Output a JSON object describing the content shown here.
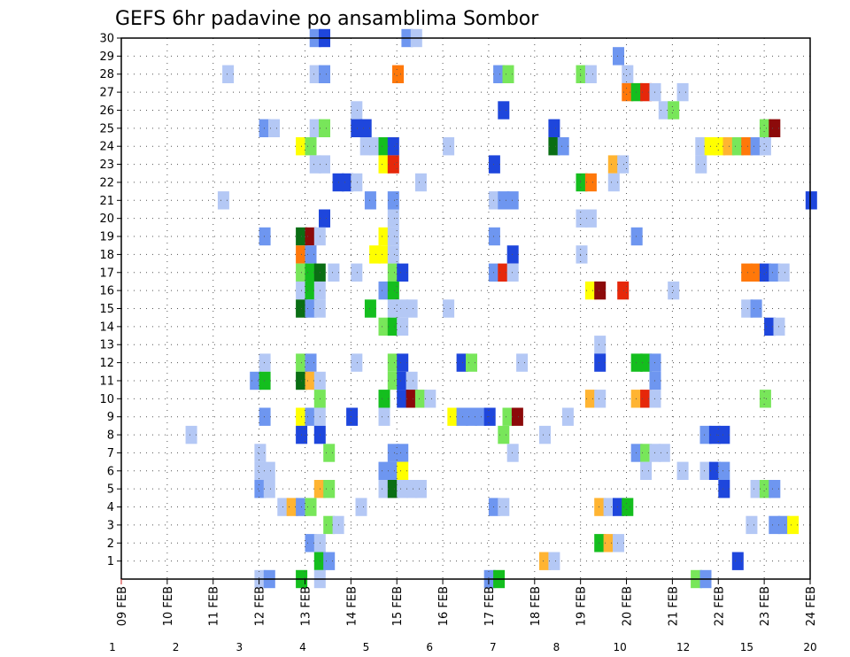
{
  "chart_data": {
    "type": "heatmap",
    "title": "GEFS 6hr padavine po ansamblima Sombor",
    "x_ticks": [
      "09 FEB",
      "10 FEB",
      "11 FEB",
      "12 FEB",
      "13 FEB",
      "14 FEB",
      "15 FEB",
      "16 FEB",
      "17 FEB",
      "18 FEB",
      "19 FEB",
      "20 FEB",
      "21 FEB",
      "22 FEB",
      "23 FEB",
      "24 FEB"
    ],
    "y_ticks": [
      "1",
      "2",
      "3",
      "4",
      "5",
      "6",
      "7",
      "8",
      "9",
      "10",
      "11",
      "12",
      "13",
      "14",
      "15",
      "16",
      "17",
      "18",
      "19",
      "20",
      "21",
      "22",
      "23",
      "24",
      "25",
      "26",
      "27",
      "28",
      "29",
      "30"
    ],
    "xlim": [
      0,
      15
    ],
    "ylim": [
      0,
      30
    ],
    "grid": true,
    "colorbar": {
      "labels": [
        "1",
        "2",
        "3",
        "4",
        "5",
        "6",
        "7",
        "8",
        "10",
        "12",
        "15",
        "20"
      ],
      "colors": [
        "#b4c8f5",
        "#6e96f0",
        "#1e46dc",
        "#78e65a",
        "#14be1e",
        "#0a6e14",
        "#ffff00",
        "#ffb432",
        "#ff780a",
        "#e6280a",
        "#8c0a0a"
      ]
    },
    "cells": [
      [
        13.1,
        30,
        2
      ],
      [
        13.3,
        30,
        3
      ],
      [
        15.1,
        30,
        2
      ],
      [
        15.3,
        30,
        1
      ],
      [
        19.7,
        29,
        2
      ],
      [
        11.2,
        28,
        1
      ],
      [
        13.1,
        28,
        1
      ],
      [
        13.3,
        28,
        2
      ],
      [
        14.9,
        28,
        9
      ],
      [
        17.1,
        28,
        2
      ],
      [
        17.3,
        28,
        4
      ],
      [
        18.9,
        28,
        4
      ],
      [
        19.1,
        28,
        1
      ],
      [
        19.9,
        28,
        1
      ],
      [
        19.9,
        27,
        9
      ],
      [
        20.1,
        27,
        5
      ],
      [
        20.3,
        27,
        10
      ],
      [
        20.5,
        27,
        1
      ],
      [
        21.1,
        27,
        1
      ],
      [
        14.0,
        26,
        1
      ],
      [
        17.2,
        26,
        3
      ],
      [
        20.7,
        26,
        1
      ],
      [
        20.9,
        26,
        4
      ],
      [
        12.0,
        25,
        2
      ],
      [
        12.2,
        25,
        1
      ],
      [
        13.1,
        25,
        1
      ],
      [
        13.3,
        25,
        4
      ],
      [
        14.0,
        25,
        3
      ],
      [
        14.2,
        25,
        3
      ],
      [
        18.3,
        25,
        3
      ],
      [
        22.9,
        25,
        4
      ],
      [
        23.1,
        25,
        11
      ],
      [
        12.8,
        24,
        7
      ],
      [
        13.0,
        24,
        4
      ],
      [
        14.2,
        24,
        1
      ],
      [
        14.4,
        24,
        1
      ],
      [
        14.6,
        24,
        5
      ],
      [
        14.8,
        24,
        3
      ],
      [
        16.0,
        24,
        1
      ],
      [
        18.3,
        24,
        6
      ],
      [
        18.5,
        24,
        2
      ],
      [
        21.5,
        24,
        1
      ],
      [
        21.7,
        24,
        7
      ],
      [
        21.9,
        24,
        7
      ],
      [
        22.1,
        24,
        8
      ],
      [
        22.3,
        24,
        4
      ],
      [
        22.5,
        24,
        9
      ],
      [
        22.7,
        24,
        2
      ],
      [
        22.9,
        24,
        1
      ],
      [
        13.1,
        23,
        1
      ],
      [
        13.3,
        23,
        1
      ],
      [
        14.6,
        23,
        7
      ],
      [
        14.8,
        23,
        10
      ],
      [
        17.0,
        23,
        3
      ],
      [
        19.6,
        23,
        8
      ],
      [
        19.8,
        23,
        1
      ],
      [
        21.5,
        23,
        1
      ],
      [
        13.6,
        22,
        3
      ],
      [
        13.8,
        22,
        3
      ],
      [
        14.0,
        22,
        1
      ],
      [
        15.4,
        22,
        1
      ],
      [
        18.9,
        22,
        5
      ],
      [
        19.1,
        22,
        9
      ],
      [
        19.6,
        22,
        1
      ],
      [
        11.1,
        21,
        1
      ],
      [
        14.3,
        21,
        2
      ],
      [
        14.8,
        21,
        2
      ],
      [
        17.0,
        21,
        1
      ],
      [
        17.2,
        21,
        2
      ],
      [
        17.4,
        21,
        2
      ],
      [
        23.9,
        21,
        3
      ],
      [
        13.3,
        20,
        3
      ],
      [
        14.8,
        20,
        1
      ],
      [
        18.9,
        20,
        1
      ],
      [
        19.1,
        20,
        1
      ],
      [
        12.0,
        19,
        2
      ],
      [
        12.8,
        19,
        6
      ],
      [
        13.0,
        19,
        11
      ],
      [
        13.2,
        19,
        1
      ],
      [
        14.6,
        19,
        7
      ],
      [
        14.8,
        19,
        1
      ],
      [
        17.0,
        19,
        2
      ],
      [
        20.1,
        19,
        2
      ],
      [
        12.8,
        18,
        9
      ],
      [
        13.0,
        18,
        2
      ],
      [
        14.4,
        18,
        7
      ],
      [
        14.6,
        18,
        7
      ],
      [
        14.8,
        18,
        1
      ],
      [
        17.4,
        18,
        3
      ],
      [
        18.9,
        18,
        1
      ],
      [
        12.8,
        17,
        4
      ],
      [
        13.0,
        17,
        5
      ],
      [
        13.2,
        17,
        6
      ],
      [
        13.5,
        17,
        1
      ],
      [
        14.0,
        17,
        1
      ],
      [
        14.8,
        17,
        4
      ],
      [
        15.0,
        17,
        3
      ],
      [
        17.0,
        17,
        2
      ],
      [
        17.2,
        17,
        10
      ],
      [
        17.4,
        17,
        1
      ],
      [
        22.5,
        17,
        9
      ],
      [
        22.7,
        17,
        9
      ],
      [
        22.9,
        17,
        3
      ],
      [
        23.1,
        17,
        2
      ],
      [
        23.3,
        17,
        1
      ],
      [
        12.8,
        16,
        1
      ],
      [
        13.0,
        16,
        5
      ],
      [
        13.2,
        16,
        1
      ],
      [
        14.6,
        16,
        2
      ],
      [
        14.8,
        16,
        5
      ],
      [
        19.1,
        16,
        7
      ],
      [
        19.3,
        16,
        11
      ],
      [
        19.8,
        16,
        10
      ],
      [
        20.9,
        16,
        1
      ],
      [
        12.8,
        15,
        6
      ],
      [
        13.0,
        15,
        2
      ],
      [
        13.2,
        15,
        1
      ],
      [
        14.3,
        15,
        5
      ],
      [
        14.8,
        15,
        1
      ],
      [
        15.0,
        15,
        1
      ],
      [
        15.2,
        15,
        1
      ],
      [
        16.0,
        15,
        1
      ],
      [
        22.5,
        15,
        1
      ],
      [
        22.7,
        15,
        2
      ],
      [
        14.6,
        14,
        4
      ],
      [
        14.8,
        14,
        5
      ],
      [
        15.0,
        14,
        1
      ],
      [
        23.0,
        14,
        3
      ],
      [
        23.2,
        14,
        1
      ],
      [
        19.3,
        13,
        1
      ],
      [
        12.0,
        12,
        1
      ],
      [
        12.8,
        12,
        4
      ],
      [
        13.0,
        12,
        2
      ],
      [
        14.0,
        12,
        1
      ],
      [
        14.8,
        12,
        4
      ],
      [
        15.0,
        12,
        3
      ],
      [
        16.3,
        12,
        3
      ],
      [
        16.5,
        12,
        4
      ],
      [
        17.6,
        12,
        1
      ],
      [
        19.3,
        12,
        3
      ],
      [
        20.1,
        12,
        5
      ],
      [
        20.3,
        12,
        5
      ],
      [
        20.5,
        12,
        2
      ],
      [
        11.8,
        11,
        2
      ],
      [
        12.0,
        11,
        5
      ],
      [
        12.8,
        11,
        6
      ],
      [
        13.0,
        11,
        8
      ],
      [
        13.2,
        11,
        1
      ],
      [
        14.8,
        11,
        4
      ],
      [
        15.0,
        11,
        3
      ],
      [
        15.2,
        11,
        1
      ],
      [
        20.5,
        11,
        2
      ],
      [
        13.2,
        10,
        4
      ],
      [
        14.6,
        10,
        5
      ],
      [
        15.0,
        10,
        3
      ],
      [
        15.2,
        10,
        11
      ],
      [
        15.4,
        10,
        4
      ],
      [
        15.6,
        10,
        1
      ],
      [
        19.1,
        10,
        8
      ],
      [
        19.3,
        10,
        1
      ],
      [
        20.1,
        10,
        8
      ],
      [
        20.3,
        10,
        10
      ],
      [
        20.5,
        10,
        1
      ],
      [
        22.9,
        10,
        4
      ],
      [
        12.0,
        9,
        2
      ],
      [
        12.8,
        9,
        7
      ],
      [
        13.0,
        9,
        2
      ],
      [
        13.2,
        9,
        1
      ],
      [
        13.9,
        9,
        3
      ],
      [
        14.6,
        9,
        1
      ],
      [
        16.1,
        9,
        7
      ],
      [
        16.3,
        9,
        2
      ],
      [
        16.5,
        9,
        2
      ],
      [
        16.7,
        9,
        2
      ],
      [
        16.9,
        9,
        3
      ],
      [
        17.3,
        9,
        4
      ],
      [
        17.5,
        9,
        11
      ],
      [
        18.6,
        9,
        1
      ],
      [
        10.4,
        8,
        1
      ],
      [
        12.8,
        8,
        3
      ],
      [
        13.2,
        8,
        3
      ],
      [
        17.2,
        8,
        4
      ],
      [
        18.1,
        8,
        1
      ],
      [
        21.6,
        8,
        2
      ],
      [
        21.8,
        8,
        3
      ],
      [
        22.0,
        8,
        3
      ],
      [
        11.9,
        7,
        1
      ],
      [
        13.4,
        7,
        4
      ],
      [
        14.8,
        7,
        2
      ],
      [
        15.0,
        7,
        2
      ],
      [
        17.4,
        7,
        1
      ],
      [
        20.1,
        7,
        2
      ],
      [
        20.3,
        7,
        4
      ],
      [
        20.5,
        7,
        1
      ],
      [
        20.7,
        7,
        1
      ],
      [
        11.9,
        6,
        1
      ],
      [
        12.1,
        6,
        1
      ],
      [
        14.6,
        6,
        2
      ],
      [
        14.8,
        6,
        2
      ],
      [
        15.0,
        6,
        7
      ],
      [
        20.3,
        6,
        1
      ],
      [
        21.1,
        6,
        1
      ],
      [
        21.6,
        6,
        1
      ],
      [
        21.8,
        6,
        3
      ],
      [
        22.0,
        6,
        2
      ],
      [
        11.9,
        5,
        2
      ],
      [
        12.1,
        5,
        1
      ],
      [
        13.2,
        5,
        8
      ],
      [
        13.4,
        5,
        4
      ],
      [
        14.6,
        5,
        1
      ],
      [
        14.8,
        5,
        6
      ],
      [
        15.0,
        5,
        1
      ],
      [
        15.2,
        5,
        1
      ],
      [
        15.4,
        5,
        1
      ],
      [
        22.0,
        5,
        3
      ],
      [
        22.7,
        5,
        1
      ],
      [
        22.9,
        5,
        4
      ],
      [
        23.1,
        5,
        2
      ],
      [
        12.4,
        4,
        1
      ],
      [
        12.6,
        4,
        8
      ],
      [
        12.8,
        4,
        2
      ],
      [
        13.0,
        4,
        4
      ],
      [
        14.1,
        4,
        1
      ],
      [
        17.0,
        4,
        2
      ],
      [
        17.2,
        4,
        1
      ],
      [
        19.3,
        4,
        8
      ],
      [
        19.5,
        4,
        1
      ],
      [
        19.7,
        4,
        3
      ],
      [
        19.9,
        4,
        5
      ],
      [
        13.4,
        3,
        4
      ],
      [
        13.6,
        3,
        1
      ],
      [
        22.6,
        3,
        1
      ],
      [
        23.1,
        3,
        2
      ],
      [
        23.3,
        3,
        2
      ],
      [
        23.5,
        3,
        7
      ],
      [
        13.0,
        2,
        2
      ],
      [
        13.2,
        2,
        1
      ],
      [
        19.3,
        2,
        5
      ],
      [
        19.5,
        2,
        8
      ],
      [
        19.7,
        2,
        1
      ],
      [
        13.2,
        1,
        5
      ],
      [
        13.4,
        1,
        2
      ],
      [
        18.1,
        1,
        8
      ],
      [
        18.3,
        1,
        1
      ],
      [
        22.3,
        1,
        3
      ],
      [
        11.9,
        0,
        1
      ],
      [
        12.1,
        0,
        2
      ],
      [
        12.8,
        0,
        5
      ],
      [
        13.2,
        0,
        1
      ],
      [
        16.9,
        0,
        2
      ],
      [
        17.1,
        0,
        5
      ],
      [
        21.4,
        0,
        4
      ],
      [
        21.6,
        0,
        2
      ]
    ]
  }
}
